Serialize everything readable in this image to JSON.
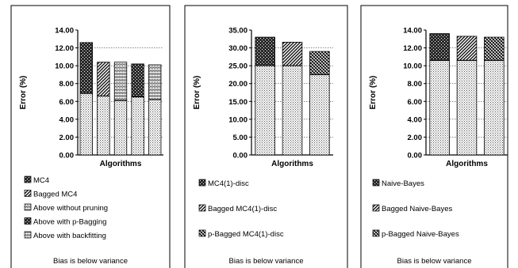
{
  "chart_data": [
    {
      "type": "bar",
      "stacked": true,
      "xlabel": "Algorithms",
      "ylabel": "Error (%)",
      "ylim": [
        0,
        14
      ],
      "yticks": [
        "0.00",
        "2.00",
        "4.00",
        "6.00",
        "8.00",
        "10.00",
        "12.00",
        "14.00"
      ],
      "grid": "horizontal dotted",
      "legend_position": "bottom",
      "footnote": "Bias is below variance",
      "series": [
        {
          "name": "MC4",
          "total": 12.6,
          "bias": 6.9,
          "pattern": "p1"
        },
        {
          "name": "Bagged MC4",
          "total": 10.4,
          "bias": 6.6,
          "pattern": "p2"
        },
        {
          "name": "Above without pruning",
          "total": 10.4,
          "bias": 6.1,
          "pattern": "p3"
        },
        {
          "name": "Above with p-Bagging",
          "total": 10.2,
          "bias": 6.5,
          "pattern": "p1"
        },
        {
          "name": "Above with backfitting",
          "total": 10.1,
          "bias": 6.2,
          "pattern": "p3"
        }
      ]
    },
    {
      "type": "bar",
      "stacked": true,
      "xlabel": "Algorithms",
      "ylabel": "Error (%)",
      "ylim": [
        0,
        35
      ],
      "yticks": [
        "0.00",
        "5.00",
        "10.00",
        "15.00",
        "20.00",
        "25.00",
        "30.00",
        "35.00"
      ],
      "grid": "horizontal dotted",
      "legend_position": "bottom",
      "footnote": "Bias is below variance",
      "series": [
        {
          "name": "MC4(1)-disc",
          "total": 33.0,
          "bias": 25.0,
          "pattern": "p1"
        },
        {
          "name": "Bagged MC4(1)-disc",
          "total": 31.6,
          "bias": 25.0,
          "pattern": "p2"
        },
        {
          "name": "p-Bagged MC4(1)-disc",
          "total": 29.0,
          "bias": 22.5,
          "pattern": "p4"
        }
      ]
    },
    {
      "type": "bar",
      "stacked": true,
      "xlabel": "Algorithms",
      "ylabel": "Error (%)",
      "ylim": [
        0,
        14
      ],
      "yticks": [
        "0.00",
        "2.00",
        "4.00",
        "6.00",
        "8.00",
        "10.00",
        "12.00",
        "14.00"
      ],
      "grid": "horizontal dotted",
      "legend_position": "bottom",
      "footnote": "Bias is below variance",
      "series": [
        {
          "name": "Naive-Bayes",
          "total": 13.6,
          "bias": 10.6,
          "pattern": "p1"
        },
        {
          "name": "Bagged Naive-Bayes",
          "total": 13.3,
          "bias": 10.6,
          "pattern": "p2"
        },
        {
          "name": "p-Bagged Naive-Bayes",
          "total": 13.2,
          "bias": 10.6,
          "pattern": "p4"
        }
      ]
    }
  ]
}
